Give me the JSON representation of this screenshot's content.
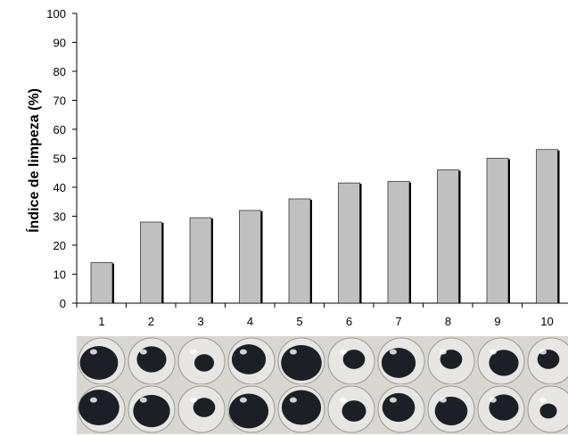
{
  "chart_data": {
    "type": "bar",
    "title": "",
    "xlabel": "",
    "ylabel": "Índice de limpeza (%)",
    "categories": [
      "1",
      "2",
      "3",
      "4",
      "5",
      "6",
      "7",
      "8",
      "9",
      "10"
    ],
    "values": [
      14,
      28,
      29.5,
      32,
      36,
      41.5,
      42,
      46,
      50,
      53
    ],
    "yticks": [
      "0",
      "10",
      "20",
      "30",
      "40",
      "50",
      "60",
      "70",
      "80",
      "90",
      "100"
    ],
    "ylim": [
      0,
      100
    ],
    "grid": false,
    "legend": "none",
    "bar_color": "#c0c0c0",
    "bar_edge_color": "#000000"
  },
  "photos": {
    "description_free": true,
    "rows": 2,
    "count_per_row": 10,
    "ball_base": "#e8e6e2",
    "stain_color": "#1c1f26",
    "stain_fraction_top": [
      0.75,
      0.45,
      0.2,
      0.6,
      0.85,
      0.25,
      0.6,
      0.25,
      0.45,
      0.25
    ],
    "stain_fraction_bottom": [
      0.85,
      0.7,
      0.25,
      0.8,
      0.8,
      0.3,
      0.55,
      0.55,
      0.45,
      0.15
    ]
  }
}
